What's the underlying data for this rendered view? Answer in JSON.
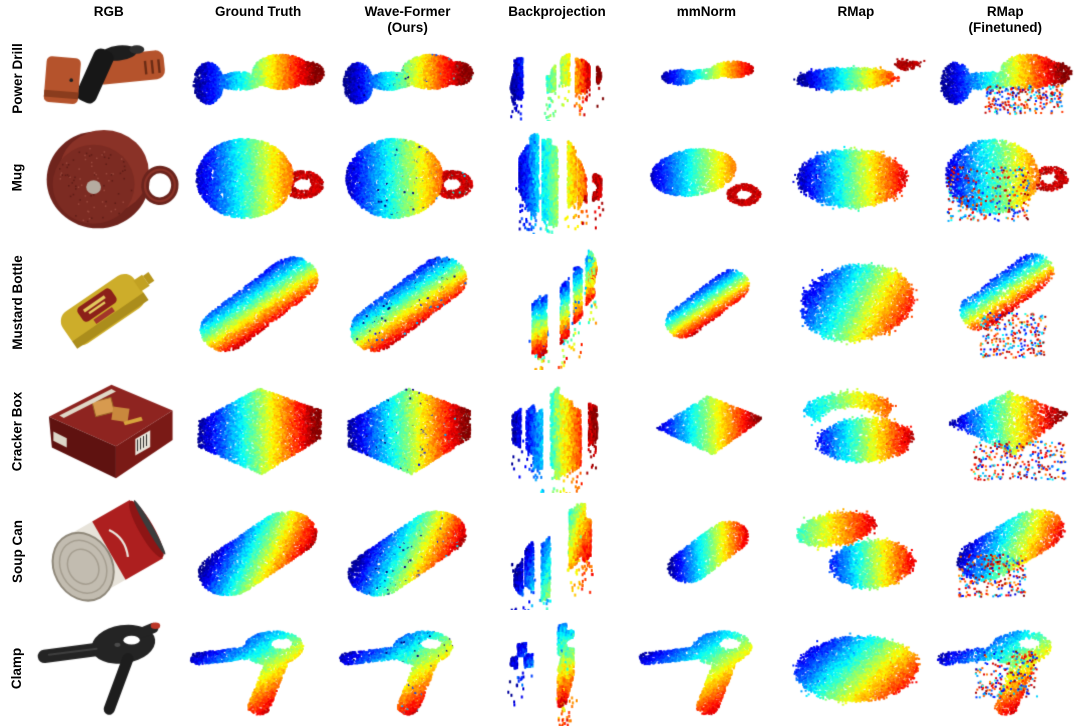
{
  "figure": {
    "type": "qualitative-comparison-grid",
    "colormap": "jet",
    "background": "#ffffff",
    "jet_stops": [
      "#00008f",
      "#0020ff",
      "#00ffff",
      "#40ff40",
      "#ffff00",
      "#ff7000",
      "#ef0000",
      "#800000"
    ],
    "columns": [
      {
        "id": "rgb",
        "label": "RGB",
        "sublabel": ""
      },
      {
        "id": "gt",
        "label": "Ground Truth",
        "sublabel": ""
      },
      {
        "id": "ours",
        "label": "Wave-Former",
        "sublabel": "(Ours)"
      },
      {
        "id": "backproj",
        "label": "Backprojection",
        "sublabel": ""
      },
      {
        "id": "mmnorm",
        "label": "mmNorm",
        "sublabel": ""
      },
      {
        "id": "rmap",
        "label": "RMap",
        "sublabel": ""
      },
      {
        "id": "rmapft",
        "label": "RMap",
        "sublabel": "(Finetuned)"
      }
    ],
    "rows": [
      {
        "id": "power-drill",
        "label": "Power Drill",
        "cells": [
          {
            "type": "photo",
            "desc": "orange and black cordless power drill lying on its side"
          },
          {
            "type": "pointcloud",
            "style": "dense",
            "desc": "complete drill-shaped cloud, blue battery end to red motor body"
          },
          {
            "type": "pointcloud",
            "style": "dense-speckled",
            "desc": "near ground-truth drill reconstruction with dark speckles"
          },
          {
            "type": "pointcloud",
            "style": "fragmented",
            "desc": "broken fragments: blue cluster, thin colored strips, red cluster"
          },
          {
            "type": "pointcloud",
            "style": "partial-smooth",
            "desc": "small smeared horizontal drill blob"
          },
          {
            "type": "pointcloud",
            "style": "fuzzy-blob",
            "desc": "flattened fuzzy rainbow blob with detached red fragment"
          },
          {
            "type": "pointcloud",
            "style": "noisy-scatter",
            "desc": "drill blob with scattered points falling below"
          }
        ]
      },
      {
        "id": "mug",
        "label": "Mug",
        "cells": [
          {
            "type": "photo",
            "desc": "dark red enamel mug tilted with bottom facing viewer, handle at right"
          },
          {
            "type": "pointcloud",
            "style": "dense",
            "desc": "round mug body blue-to-yellow with red handle ring"
          },
          {
            "type": "pointcloud",
            "style": "dense-speckled",
            "desc": "near ground-truth mug body and red handle"
          },
          {
            "type": "pointcloud",
            "style": "fragmented",
            "desc": "blue teardrop fragment with separate orange strip"
          },
          {
            "type": "pointcloud",
            "style": "partial-smooth",
            "desc": "partial wing-shaped body with red D-shaped handle"
          },
          {
            "type": "pointcloud",
            "style": "fuzzy-blob",
            "desc": "fuzzy horizontal rainbow blob, no handle"
          },
          {
            "type": "pointcloud",
            "style": "noisy-scatter",
            "desc": "noisy mug body with red handle and stray points"
          }
        ]
      },
      {
        "id": "mustard-bottle",
        "label": "Mustard Bottle",
        "cells": [
          {
            "type": "photo",
            "desc": "yellow mustard squeeze bottle tilted diagonally, cap upper right"
          },
          {
            "type": "pointcloud",
            "style": "dense",
            "desc": "diagonal bottle, blue upper-left edge to red lower-right flank"
          },
          {
            "type": "pointcloud",
            "style": "dense-speckled",
            "desc": "near ground-truth bottle reconstruction"
          },
          {
            "type": "pointcloud",
            "style": "fragmented",
            "desc": "chaotic striped multicolor fragments with drips below"
          },
          {
            "type": "pointcloud",
            "style": "partial-smooth",
            "desc": "smaller clean diagonal bottle blob"
          },
          {
            "type": "pointcloud",
            "style": "fuzzy-blob",
            "desc": "large round fuzzy rainbow blob"
          },
          {
            "type": "pointcloud",
            "style": "noisy-scatter",
            "desc": "diagonal blob with scattered cyan and red points below"
          }
        ]
      },
      {
        "id": "cracker-box",
        "label": "Cracker Box",
        "cells": [
          {
            "type": "photo",
            "desc": "red Cheez-It cracker box lying flat in 3D perspective"
          },
          {
            "type": "pointcloud",
            "style": "dense",
            "desc": "box-shaped cloud, blue left to dark red right faces"
          },
          {
            "type": "pointcloud",
            "style": "dense-speckled",
            "desc": "near ground-truth box reconstruction"
          },
          {
            "type": "pointcloud",
            "style": "fragmented",
            "desc": "large chaotic layered rainbow mass with drips"
          },
          {
            "type": "pointcloud",
            "style": "partial-smooth",
            "desc": "clean flat parallelogram, blue to red"
          },
          {
            "type": "pointcloud",
            "style": "fuzzy-blob",
            "desc": "two crescent discs, cyan upper and rainbow lower"
          },
          {
            "type": "pointcloud",
            "style": "noisy-scatter",
            "desc": "parallelogram plane with scattered dots beneath"
          }
        ]
      },
      {
        "id": "soup-can",
        "label": "Soup Can",
        "cells": [
          {
            "type": "photo",
            "desc": "Campbell's tomato soup can tilted, silver bottom facing lower-left"
          },
          {
            "type": "pointcloud",
            "style": "dense",
            "desc": "diagonal cylinder, blue upper-left to red right"
          },
          {
            "type": "pointcloud",
            "style": "dense-speckled",
            "desc": "near ground-truth cylinder reconstruction"
          },
          {
            "type": "pointcloud",
            "style": "fragmented",
            "desc": "small vertical rainbow strips with orange drips"
          },
          {
            "type": "pointcloud",
            "style": "partial-smooth",
            "desc": "small clean diagonal cylinder"
          },
          {
            "type": "pointcloud",
            "style": "fuzzy-blob",
            "desc": "two fuzzy blobs, cyan-orange wing and blue-red disc"
          },
          {
            "type": "pointcloud",
            "style": "noisy-scatter",
            "desc": "diagonal blob with scattered points lower left"
          }
        ]
      },
      {
        "id": "clamp",
        "label": "Clamp",
        "cells": [
          {
            "type": "photo",
            "desc": "black spring clamp with long left handle and downward leg, red tip"
          },
          {
            "type": "pointcloud",
            "style": "dense",
            "desc": "clamp shape, blue arm, cyan head, red descending leg"
          },
          {
            "type": "pointcloud",
            "style": "dense-speckled",
            "desc": "near ground-truth clamp reconstruction"
          },
          {
            "type": "pointcloud",
            "style": "fragmented",
            "desc": "horizontal blue streaks with orange-red drips below"
          },
          {
            "type": "pointcloud",
            "style": "partial-smooth",
            "desc": "clamp shape with hole, blue arm to red leg"
          },
          {
            "type": "pointcloud",
            "style": "fuzzy-blob",
            "desc": "single large oval blob, blue top-left to dark red bottom-right"
          },
          {
            "type": "pointcloud",
            "style": "noisy-scatter",
            "desc": "clamp shape with scattered rainbow dots in middle"
          }
        ]
      }
    ]
  }
}
